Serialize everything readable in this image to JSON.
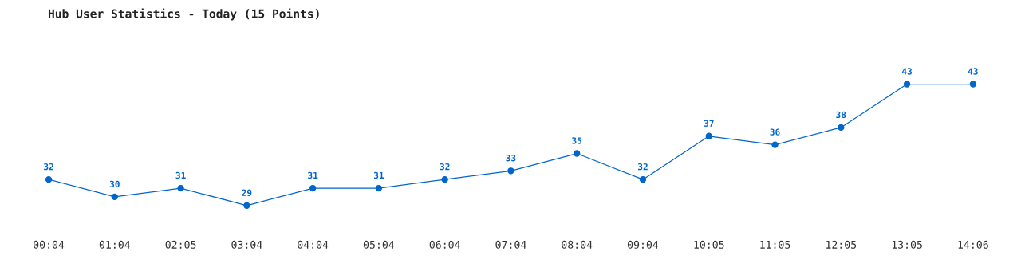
{
  "chart_data": {
    "type": "line",
    "title": "Hub User Statistics - Today (15 Points)",
    "categories": [
      "00:04",
      "01:04",
      "02:05",
      "03:04",
      "04:04",
      "05:04",
      "06:04",
      "07:04",
      "08:04",
      "09:04",
      "10:05",
      "11:05",
      "12:05",
      "13:05",
      "14:06"
    ],
    "values": [
      32,
      30,
      31,
      29,
      31,
      31,
      32,
      33,
      35,
      32,
      37,
      36,
      38,
      43,
      43
    ],
    "color": "#0066cc",
    "marker": "circle",
    "line_style": "solid",
    "data_labels": true,
    "grid": false,
    "legend": false
  }
}
